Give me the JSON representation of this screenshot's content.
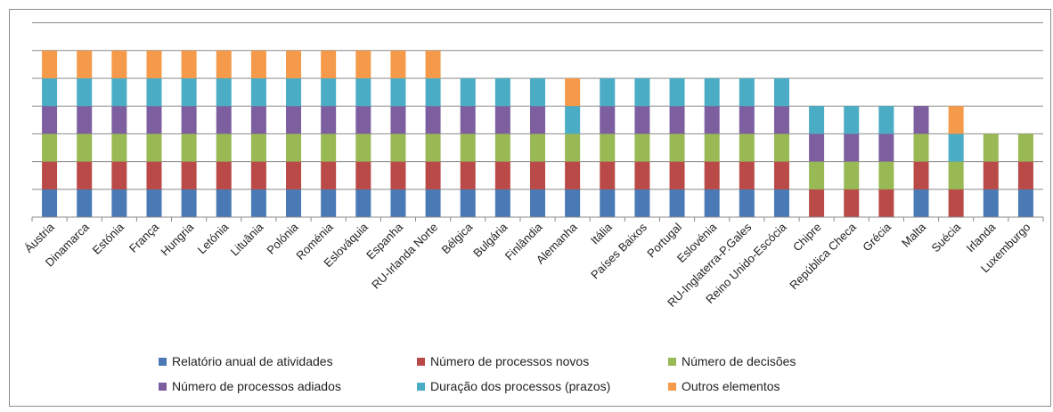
{
  "chart_data": {
    "type": "bar",
    "stacked": true,
    "title": "",
    "xlabel": "",
    "ylabel": "",
    "ylim": [
      0,
      7
    ],
    "grid": true,
    "legend_position": "bottom",
    "categories": [
      "Áustria",
      "Dinamarca",
      "Estónia",
      "França",
      "Hungria",
      "Letónia",
      "Lituânia",
      "Polónia",
      "Roménia",
      "Eslováquia",
      "Espanha",
      "RU-Irlanda Norte",
      "Bélgica",
      "Bulgária",
      "Finlândia",
      "Alemanha",
      "Itália",
      "Países Baixos",
      "Portugal",
      "Eslovénia",
      "RU-Inglaterra-P.Gales",
      "Reino Unido-Escócia",
      "Chipre",
      "República Checa",
      "Grécia",
      "Malta",
      "Suécia",
      "Irlanda",
      "Luxemburgo"
    ],
    "series": [
      {
        "name": "Relatório anual de atividades",
        "color": "#4a7ab5",
        "values": [
          1,
          1,
          1,
          1,
          1,
          1,
          1,
          1,
          1,
          1,
          1,
          1,
          1,
          1,
          1,
          1,
          1,
          1,
          1,
          1,
          1,
          1,
          0,
          0,
          0,
          1,
          0,
          1,
          1
        ]
      },
      {
        "name": "Número de processos novos",
        "color": "#b94a48",
        "values": [
          1,
          1,
          1,
          1,
          1,
          1,
          1,
          1,
          1,
          1,
          1,
          1,
          1,
          1,
          1,
          1,
          1,
          1,
          1,
          1,
          1,
          1,
          1,
          1,
          1,
          1,
          1,
          1,
          1
        ]
      },
      {
        "name": "Número de decisões",
        "color": "#98b954",
        "values": [
          1,
          1,
          1,
          1,
          1,
          1,
          1,
          1,
          1,
          1,
          1,
          1,
          1,
          1,
          1,
          1,
          1,
          1,
          1,
          1,
          1,
          1,
          1,
          1,
          1,
          1,
          1,
          1,
          1
        ]
      },
      {
        "name": "Número de processos adiados",
        "color": "#7d5fa0",
        "values": [
          1,
          1,
          1,
          1,
          1,
          1,
          1,
          1,
          1,
          1,
          1,
          1,
          1,
          1,
          1,
          0,
          1,
          1,
          1,
          1,
          1,
          1,
          1,
          1,
          1,
          1,
          0,
          0,
          0
        ]
      },
      {
        "name": "Duração dos processos (prazos)",
        "color": "#4aacc5",
        "values": [
          1,
          1,
          1,
          1,
          1,
          1,
          1,
          1,
          1,
          1,
          1,
          1,
          1,
          1,
          1,
          1,
          1,
          1,
          1,
          1,
          1,
          1,
          1,
          1,
          1,
          0,
          1,
          0,
          0
        ]
      },
      {
        "name": "Outros elementos",
        "color": "#f49a4a",
        "values": [
          1,
          1,
          1,
          1,
          1,
          1,
          1,
          1,
          1,
          1,
          1,
          1,
          0,
          0,
          0,
          1,
          0,
          0,
          0,
          0,
          0,
          0,
          0,
          0,
          0,
          0,
          1,
          0,
          0
        ]
      }
    ]
  }
}
